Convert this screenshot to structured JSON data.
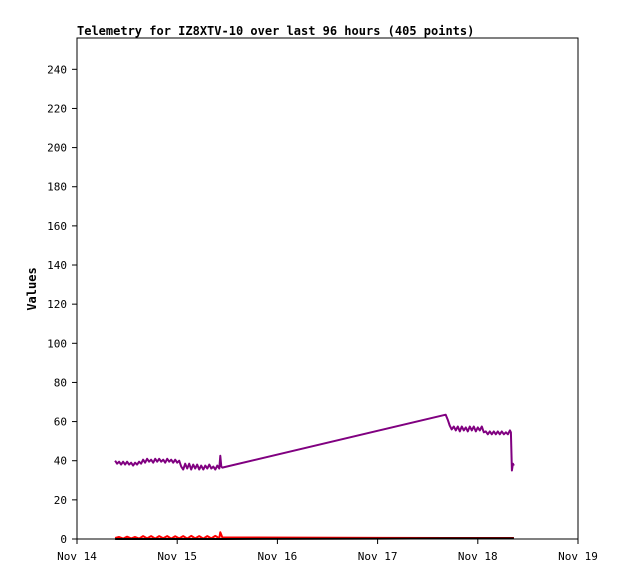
{
  "chart_data": {
    "type": "line",
    "title": "Telemetry for IZ8XTV-10 over last 96 hours (405 points)",
    "ylabel": "Values",
    "xlabel": "",
    "x_ticks": [
      "Nov 14",
      "Nov 15",
      "Nov 16",
      "Nov 17",
      "Nov 18",
      "Nov 19"
    ],
    "y_ticks": [
      0,
      20,
      40,
      60,
      80,
      100,
      120,
      140,
      160,
      180,
      200,
      220,
      240
    ],
    "xlim_days": [
      14,
      19
    ],
    "ylim": [
      0,
      256
    ],
    "grid": false,
    "legend": "none",
    "series": [
      {
        "color": "#800080",
        "points": [
          [
            14.38,
            40
          ],
          [
            14.4,
            38.5
          ],
          [
            14.42,
            39.5
          ],
          [
            14.44,
            38
          ],
          [
            14.46,
            39.5
          ],
          [
            14.48,
            38
          ],
          [
            14.5,
            39.5
          ],
          [
            14.52,
            38
          ],
          [
            14.54,
            39
          ],
          [
            14.56,
            37.5
          ],
          [
            14.58,
            39
          ],
          [
            14.6,
            38
          ],
          [
            14.62,
            39.5
          ],
          [
            14.64,
            38.5
          ],
          [
            14.66,
            40.5
          ],
          [
            14.68,
            39
          ],
          [
            14.7,
            41
          ],
          [
            14.72,
            39.5
          ],
          [
            14.74,
            40.5
          ],
          [
            14.76,
            39
          ],
          [
            14.78,
            41
          ],
          [
            14.8,
            39.5
          ],
          [
            14.82,
            41
          ],
          [
            14.84,
            39.5
          ],
          [
            14.86,
            40.5
          ],
          [
            14.88,
            39
          ],
          [
            14.9,
            41
          ],
          [
            14.92,
            39.5
          ],
          [
            14.94,
            40.5
          ],
          [
            14.96,
            39
          ],
          [
            14.98,
            40.5
          ],
          [
            15.0,
            39
          ],
          [
            15.02,
            40
          ],
          [
            15.04,
            37
          ],
          [
            15.06,
            35.5
          ],
          [
            15.08,
            38.5
          ],
          [
            15.1,
            36
          ],
          [
            15.12,
            38.5
          ],
          [
            15.14,
            35.5
          ],
          [
            15.16,
            38
          ],
          [
            15.18,
            36
          ],
          [
            15.2,
            38
          ],
          [
            15.22,
            35.5
          ],
          [
            15.24,
            37.5
          ],
          [
            15.26,
            35.5
          ],
          [
            15.28,
            37.5
          ],
          [
            15.3,
            36
          ],
          [
            15.32,
            38
          ],
          [
            15.34,
            36
          ],
          [
            15.36,
            37
          ],
          [
            15.38,
            35.5
          ],
          [
            15.4,
            37.5
          ],
          [
            15.42,
            36
          ],
          [
            15.43,
            42.5
          ],
          [
            15.44,
            37
          ],
          [
            15.45,
            36.5
          ],
          [
            17.68,
            63.5
          ],
          [
            17.7,
            61
          ],
          [
            17.72,
            58
          ],
          [
            17.74,
            56
          ],
          [
            17.76,
            57.5
          ],
          [
            17.78,
            55.5
          ],
          [
            17.8,
            57.5
          ],
          [
            17.82,
            55
          ],
          [
            17.84,
            57.5
          ],
          [
            17.86,
            55.5
          ],
          [
            17.88,
            57
          ],
          [
            17.9,
            55
          ],
          [
            17.92,
            57.5
          ],
          [
            17.94,
            55.5
          ],
          [
            17.96,
            57.5
          ],
          [
            17.98,
            55
          ],
          [
            18.0,
            57
          ],
          [
            18.02,
            55.5
          ],
          [
            18.04,
            57.5
          ],
          [
            18.06,
            54.5
          ],
          [
            18.08,
            55
          ],
          [
            18.1,
            53.5
          ],
          [
            18.12,
            55
          ],
          [
            18.14,
            53.5
          ],
          [
            18.16,
            55
          ],
          [
            18.18,
            53.5
          ],
          [
            18.2,
            55
          ],
          [
            18.22,
            53.5
          ],
          [
            18.24,
            55
          ],
          [
            18.26,
            53.5
          ],
          [
            18.28,
            54.5
          ],
          [
            18.3,
            53.5
          ],
          [
            18.32,
            55.5
          ],
          [
            18.33,
            54.5
          ],
          [
            18.34,
            35
          ],
          [
            18.35,
            38.5
          ],
          [
            18.36,
            37.5
          ]
        ]
      },
      {
        "color": "#ff0000",
        "points": [
          [
            14.38,
            0.5
          ],
          [
            14.42,
            1
          ],
          [
            14.46,
            0.2
          ],
          [
            14.5,
            1.2
          ],
          [
            14.54,
            0.3
          ],
          [
            14.58,
            1
          ],
          [
            14.62,
            0.2
          ],
          [
            14.66,
            1.5
          ],
          [
            14.7,
            0.3
          ],
          [
            14.74,
            1.5
          ],
          [
            14.78,
            0.2
          ],
          [
            14.82,
            1.5
          ],
          [
            14.86,
            0.4
          ],
          [
            14.9,
            1.5
          ],
          [
            14.94,
            0.2
          ],
          [
            14.98,
            1.4
          ],
          [
            15.02,
            0.3
          ],
          [
            15.06,
            1.5
          ],
          [
            15.1,
            0.2
          ],
          [
            15.14,
            1.6
          ],
          [
            15.18,
            0.3
          ],
          [
            15.22,
            1.5
          ],
          [
            15.26,
            0.2
          ],
          [
            15.3,
            1.5
          ],
          [
            15.34,
            0.3
          ],
          [
            15.38,
            1.6
          ],
          [
            15.42,
            0.4
          ],
          [
            15.43,
            3.5
          ],
          [
            15.45,
            0.8
          ],
          [
            17.68,
            0.5
          ],
          [
            18.36,
            0.5
          ]
        ]
      },
      {
        "color": "#000000",
        "points": [
          [
            14.38,
            0
          ],
          [
            15.45,
            0
          ],
          [
            17.68,
            0.3
          ],
          [
            18.36,
            0.3
          ]
        ]
      }
    ]
  }
}
